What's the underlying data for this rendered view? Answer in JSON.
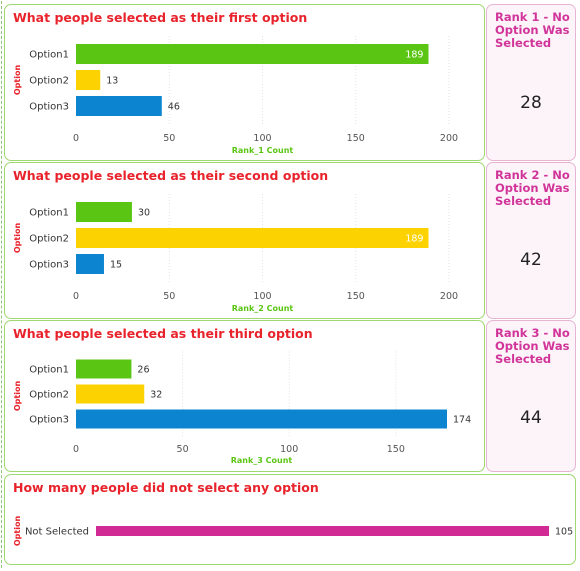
{
  "colors": {
    "option1": "#5bc514",
    "option2": "#fcd200",
    "option3": "#0c84d0",
    "not_selected": "#d12a95",
    "title": "#e8232b",
    "axis_title": "#5bc514",
    "kpi_label": "#d1359a"
  },
  "panels": [
    {
      "title": "What people selected as their first option",
      "kpi": {
        "label": "Rank 1 - No Option Was Selected",
        "value": "28"
      }
    },
    {
      "title": "What people selected as their second option",
      "kpi": {
        "label": "Rank 2 - No Option Was Selected",
        "value": "42"
      }
    },
    {
      "title": "What people selected as their third option",
      "kpi": {
        "label": "Rank 3 - No Option Was Selected",
        "value": "44"
      }
    },
    {
      "title": "How many people did not select any option"
    }
  ],
  "chart_data": [
    {
      "type": "bar",
      "orientation": "horizontal",
      "categories": [
        "Option1",
        "Option2",
        "Option3"
      ],
      "values": [
        189,
        13,
        46
      ],
      "xlabel": "Rank_1 Count",
      "ylabel": "Option",
      "xlim": [
        0,
        200
      ],
      "xticks": [
        0,
        50,
        100,
        150,
        200
      ],
      "value_label_inside_max": true
    },
    {
      "type": "bar",
      "orientation": "horizontal",
      "categories": [
        "Option1",
        "Option2",
        "Option3"
      ],
      "values": [
        30,
        189,
        15
      ],
      "xlabel": "Rank_2 Count",
      "ylabel": "Option",
      "xlim": [
        0,
        200
      ],
      "xticks": [
        0,
        50,
        100,
        150,
        200
      ],
      "value_label_inside_max": true
    },
    {
      "type": "bar",
      "orientation": "horizontal",
      "categories": [
        "Option1",
        "Option2",
        "Option3"
      ],
      "values": [
        26,
        32,
        174
      ],
      "xlabel": "Rank_3 Count",
      "ylabel": "Option",
      "xlim": [
        0,
        174
      ],
      "xticks": [
        0,
        50,
        100,
        150
      ],
      "value_label_inside_max": false
    },
    {
      "type": "bar",
      "orientation": "horizontal",
      "categories": [
        "Not Selected"
      ],
      "values": [
        105
      ],
      "xlabel": "",
      "ylabel": "Option",
      "xlim": [
        0,
        105
      ],
      "xticks": [],
      "value_label_inside_max": false
    }
  ]
}
